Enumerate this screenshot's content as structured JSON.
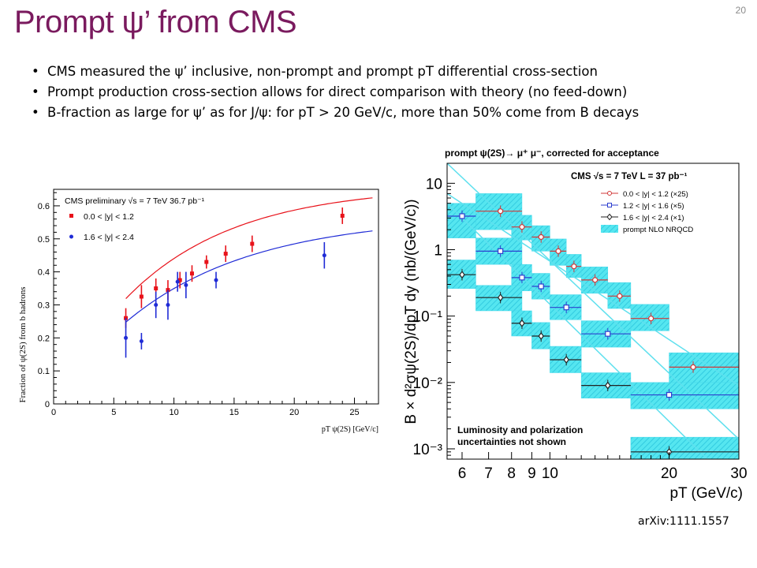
{
  "slide": {
    "title": "Prompt ψ’ from CMS",
    "page_number": "20",
    "bullets": [
      "CMS measured the ψ’ inclusive, non-prompt and prompt pT differential cross-section",
      "Prompt production cross-section allows for direct comparison with theory (no feed-down)",
      "B-fraction as large for ψ’ as for J/ψ: for pT > 20 GeV/c, more than 50% come from B decays"
    ],
    "reference": "arXiv:1111.1557"
  },
  "chart_data": [
    {
      "type": "scatter",
      "ylabel": "Fraction of ψ(2S) from b hadrons",
      "xlabel": "pT ψ(2S) [GeV/c]",
      "xlim": [
        0,
        27
      ],
      "ylim": [
        0,
        0.65
      ],
      "xticks": [
        "0",
        "5",
        "10",
        "15",
        "20",
        "25"
      ],
      "yticks": [
        "0",
        "0.1",
        "0.2",
        "0.3",
        "0.4",
        "0.5",
        "0.6"
      ],
      "legend": {
        "header": "CMS preliminary  √s = 7 TeV  36.7 pb⁻¹",
        "placement": "top-left"
      },
      "series": [
        {
          "name": "0.0 < |y| < 1.2",
          "color": "#e8121a",
          "marker": "square",
          "points": [
            {
              "x": 6.0,
              "y": 0.26,
              "err": 0.03
            },
            {
              "x": 7.3,
              "y": 0.325,
              "err": 0.035
            },
            {
              "x": 8.5,
              "y": 0.35,
              "err": 0.03
            },
            {
              "x": 9.5,
              "y": 0.345,
              "err": 0.03
            },
            {
              "x": 10.5,
              "y": 0.375,
              "err": 0.025
            },
            {
              "x": 11.5,
              "y": 0.395,
              "err": 0.025
            },
            {
              "x": 12.7,
              "y": 0.43,
              "err": 0.02
            },
            {
              "x": 14.3,
              "y": 0.455,
              "err": 0.025
            },
            {
              "x": 16.5,
              "y": 0.485,
              "err": 0.025
            },
            {
              "x": 24.0,
              "y": 0.57,
              "err": 0.025
            }
          ],
          "fit": {
            "a": 0.66,
            "b": 0.11
          }
        },
        {
          "name": "1.6 < |y| < 2.4",
          "color": "#1f2bd6",
          "marker": "circle",
          "points": [
            {
              "x": 6.0,
              "y": 0.2,
              "err": 0.06
            },
            {
              "x": 7.3,
              "y": 0.19,
              "err": 0.025
            },
            {
              "x": 8.5,
              "y": 0.3,
              "err": 0.04
            },
            {
              "x": 9.5,
              "y": 0.3,
              "err": 0.045
            },
            {
              "x": 10.3,
              "y": 0.37,
              "err": 0.03
            },
            {
              "x": 11.0,
              "y": 0.36,
              "err": 0.04
            },
            {
              "x": 13.5,
              "y": 0.375,
              "err": 0.025
            },
            {
              "x": 22.5,
              "y": 0.45,
              "err": 0.04
            }
          ],
          "fit": {
            "a": 0.57,
            "b": 0.095
          }
        }
      ]
    },
    {
      "type": "scatter",
      "title": "prompt ψ(2S)→ μ⁺ μ⁻, corrected for acceptance",
      "ylabel": "B × d²σψ(2S)/dpT dy (nb/(GeV/c))",
      "xlabel": "pT (GeV/c)",
      "log_x": true,
      "log_y": true,
      "xlim": [
        5.5,
        30
      ],
      "ylim": [
        0.0007,
        20
      ],
      "xticks": [
        "6",
        "7",
        "8",
        "9",
        "10",
        "20",
        "30"
      ],
      "yticks": [
        "10⁻³",
        "10⁻²",
        "10⁻¹",
        "1",
        "10"
      ],
      "legend": {
        "header": "CMS  √s = 7 TeV  L = 37 pb⁻¹",
        "placement": "top-right",
        "band_label": "prompt NLO NRQCD"
      },
      "annotation": "Luminosity and polarization uncertainties not shown",
      "series": [
        {
          "name": "0.0 < |y| < 1.2 (×25)",
          "color": "#d03838",
          "marker": "circle-open",
          "points": [
            {
              "x": 7.5,
              "xlo": 6.5,
              "xhi": 8.5,
              "y": 3.8,
              "blo": 2.0,
              "bhi": 7.0
            },
            {
              "x": 8.5,
              "xlo": 8.0,
              "xhi": 9.0,
              "y": 2.2,
              "blo": 1.4,
              "bhi": 3.3
            },
            {
              "x": 9.5,
              "xlo": 9.0,
              "xhi": 10.0,
              "y": 1.55,
              "blo": 0.95,
              "bhi": 2.3
            },
            {
              "x": 10.5,
              "xlo": 10.0,
              "xhi": 11.0,
              "y": 0.95,
              "blo": 0.58,
              "bhi": 1.45
            },
            {
              "x": 11.5,
              "xlo": 11.0,
              "xhi": 12.0,
              "y": 0.56,
              "blo": 0.38,
              "bhi": 0.85
            },
            {
              "x": 13.0,
              "xlo": 12.0,
              "xhi": 14.0,
              "y": 0.35,
              "blo": 0.22,
              "bhi": 0.55
            },
            {
              "x": 15.0,
              "xlo": 14.0,
              "xhi": 16.0,
              "y": 0.2,
              "blo": 0.13,
              "bhi": 0.32
            },
            {
              "x": 18.0,
              "xlo": 16.0,
              "xhi": 20.0,
              "y": 0.092,
              "blo": 0.06,
              "bhi": 0.15
            },
            {
              "x": 23.0,
              "xlo": 20.0,
              "xhi": 30.0,
              "y": 0.017,
              "blo": 0.01,
              "bhi": 0.028
            }
          ]
        },
        {
          "name": "1.2 < |y| < 1.6 (×5)",
          "color": "#2d3fcf",
          "marker": "square-open",
          "points": [
            {
              "x": 6.0,
              "xlo": 5.5,
              "xhi": 6.5,
              "y": 3.2,
              "blo": 1.5,
              "bhi": 5.0
            },
            {
              "x": 7.5,
              "xlo": 6.5,
              "xhi": 8.5,
              "y": 0.95,
              "blo": 0.6,
              "bhi": 1.5
            },
            {
              "x": 8.5,
              "xlo": 8.0,
              "xhi": 9.0,
              "y": 0.38,
              "blo": 0.24,
              "bhi": 0.6
            },
            {
              "x": 9.5,
              "xlo": 9.0,
              "xhi": 10.0,
              "y": 0.28,
              "blo": 0.18,
              "bhi": 0.44
            },
            {
              "x": 11.0,
              "xlo": 10.0,
              "xhi": 12.0,
              "y": 0.135,
              "blo": 0.088,
              "bhi": 0.21
            },
            {
              "x": 14.0,
              "xlo": 12.0,
              "xhi": 16.0,
              "y": 0.054,
              "blo": 0.034,
              "bhi": 0.085
            },
            {
              "x": 20.0,
              "xlo": 16.0,
              "xhi": 30.0,
              "y": 0.0065,
              "blo": 0.004,
              "bhi": 0.01
            }
          ]
        },
        {
          "name": "1.6 < |y| < 2.4 (×1)",
          "color": "#222222",
          "marker": "diamond-open",
          "points": [
            {
              "x": 6.0,
              "xlo": 5.5,
              "xhi": 6.5,
              "y": 0.42,
              "blo": 0.26,
              "bhi": 0.7
            },
            {
              "x": 7.5,
              "xlo": 6.5,
              "xhi": 8.5,
              "y": 0.19,
              "blo": 0.12,
              "bhi": 0.29
            },
            {
              "x": 8.5,
              "xlo": 8.0,
              "xhi": 9.0,
              "y": 0.078,
              "blo": 0.05,
              "bhi": 0.12
            },
            {
              "x": 9.5,
              "xlo": 9.0,
              "xhi": 10.0,
              "y": 0.05,
              "blo": 0.032,
              "bhi": 0.08
            },
            {
              "x": 11.0,
              "xlo": 10.0,
              "xhi": 12.0,
              "y": 0.022,
              "blo": 0.014,
              "bhi": 0.035
            },
            {
              "x": 14.0,
              "xlo": 12.0,
              "xhi": 16.0,
              "y": 0.009,
              "blo": 0.0058,
              "bhi": 0.014
            },
            {
              "x": 20.0,
              "xlo": 16.0,
              "xhi": 30.0,
              "y": 0.0009,
              "blo": 0.00055,
              "bhi": 0.0015
            }
          ]
        }
      ],
      "theory_lines": [
        {
          "x": [
            5.5,
            30
          ],
          "y": [
            7.0,
            0.009
          ]
        },
        {
          "x": [
            5.5,
            30
          ],
          "y": [
            20.0,
            0.0014
          ]
        },
        {
          "x": [
            5.5,
            25
          ],
          "y": [
            5.0,
            0.0007
          ]
        }
      ]
    }
  ]
}
